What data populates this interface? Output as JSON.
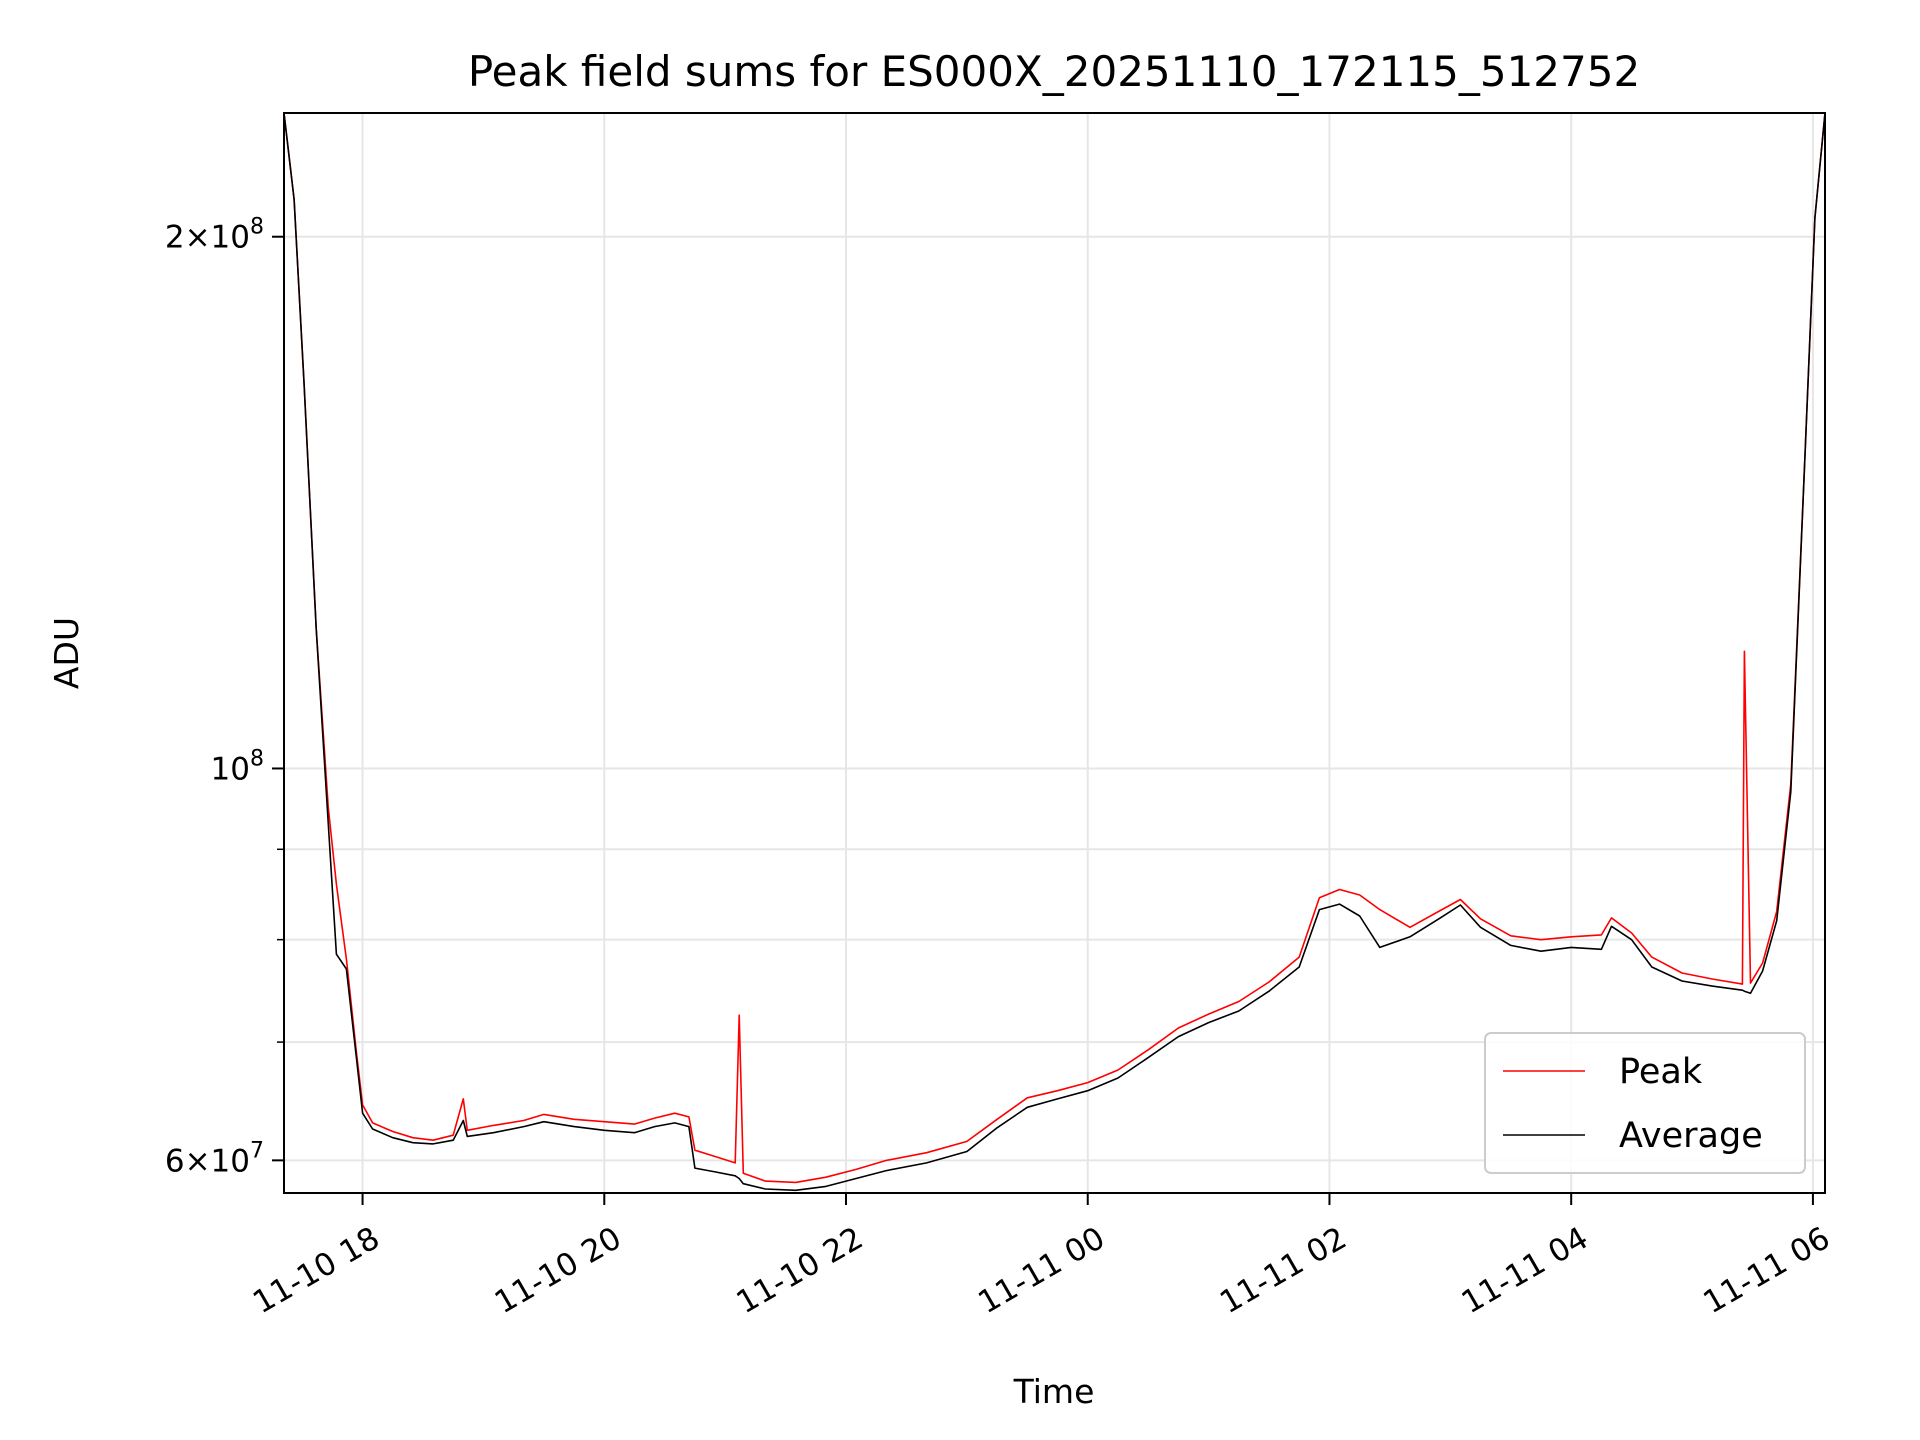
{
  "chart_data": {
    "type": "line",
    "title": "Peak field sums for ES000X_20251110_172115_512752",
    "xlabel": "Time",
    "ylabel": "ADU",
    "y_scale": "log",
    "xlim": [
      "2025-11-10T17:21",
      "2025-11-11T06:06"
    ],
    "ylim": [
      57500000,
      235000000
    ],
    "grid": true,
    "legend": "lower-right",
    "x_ticks": [
      {
        "x": "2025-11-10T18:00",
        "label": "11-10 18"
      },
      {
        "x": "2025-11-10T20:00",
        "label": "11-10 20"
      },
      {
        "x": "2025-11-10T22:00",
        "label": "11-10 22"
      },
      {
        "x": "2025-11-11T00:00",
        "label": "11-11 00"
      },
      {
        "x": "2025-11-11T02:00",
        "label": "11-11 02"
      },
      {
        "x": "2025-11-11T04:00",
        "label": "11-11 04"
      },
      {
        "x": "2025-11-11T06:00",
        "label": "11-11 06"
      }
    ],
    "y_ticks": [
      {
        "y": 60000000,
        "mantissa": "6",
        "exp": "7"
      },
      {
        "y": 100000000,
        "mantissa": "",
        "exp": "8"
      },
      {
        "y": 200000000,
        "mantissa": "2",
        "exp": "8"
      }
    ],
    "series": [
      {
        "name": "Peak",
        "color": "#ff0000",
        "points": [
          [
            "2025-11-10T17:21",
            235000000
          ],
          [
            "2025-11-10T17:26",
            210000000
          ],
          [
            "2025-11-10T17:31",
            165000000
          ],
          [
            "2025-11-10T17:37",
            120000000
          ],
          [
            "2025-11-10T17:43",
            95000000
          ],
          [
            "2025-11-10T17:47",
            86000000
          ],
          [
            "2025-11-10T17:52",
            78000000
          ],
          [
            "2025-11-10T17:57",
            69000000
          ],
          [
            "2025-11-10T18:00",
            64500000
          ],
          [
            "2025-11-10T18:05",
            63000000
          ],
          [
            "2025-11-10T18:15",
            62300000
          ],
          [
            "2025-11-10T18:25",
            61800000
          ],
          [
            "2025-11-10T18:35",
            61600000
          ],
          [
            "2025-11-10T18:45",
            62000000
          ],
          [
            "2025-11-10T18:50",
            65000000
          ],
          [
            "2025-11-10T18:52",
            62400000
          ],
          [
            "2025-11-10T19:05",
            62800000
          ],
          [
            "2025-11-10T19:20",
            63200000
          ],
          [
            "2025-11-10T19:30",
            63700000
          ],
          [
            "2025-11-10T19:45",
            63300000
          ],
          [
            "2025-11-10T20:00",
            63100000
          ],
          [
            "2025-11-10T20:15",
            62900000
          ],
          [
            "2025-11-10T20:25",
            63400000
          ],
          [
            "2025-11-10T20:35",
            63800000
          ],
          [
            "2025-11-10T20:42",
            63500000
          ],
          [
            "2025-11-10T20:45",
            60800000
          ],
          [
            "2025-11-10T20:55",
            60300000
          ],
          [
            "2025-11-10T21:05",
            59800000
          ],
          [
            "2025-11-10T21:07",
            72500000
          ],
          [
            "2025-11-10T21:09",
            59000000
          ],
          [
            "2025-11-10T21:20",
            58400000
          ],
          [
            "2025-11-10T21:35",
            58300000
          ],
          [
            "2025-11-10T21:50",
            58700000
          ],
          [
            "2025-11-10T22:05",
            59300000
          ],
          [
            "2025-11-10T22:20",
            60000000
          ],
          [
            "2025-11-10T22:40",
            60600000
          ],
          [
            "2025-11-10T23:00",
            61500000
          ],
          [
            "2025-11-10T23:15",
            63300000
          ],
          [
            "2025-11-10T23:30",
            65100000
          ],
          [
            "2025-11-10T23:45",
            65700000
          ],
          [
            "2025-11-11T00:00",
            66400000
          ],
          [
            "2025-11-11T00:15",
            67500000
          ],
          [
            "2025-11-11T00:30",
            69300000
          ],
          [
            "2025-11-11T00:45",
            71300000
          ],
          [
            "2025-11-11T01:00",
            72600000
          ],
          [
            "2025-11-11T01:15",
            73800000
          ],
          [
            "2025-11-11T01:30",
            75700000
          ],
          [
            "2025-11-11T01:45",
            78200000
          ],
          [
            "2025-11-11T01:55",
            84500000
          ],
          [
            "2025-11-11T02:05",
            85400000
          ],
          [
            "2025-11-11T02:15",
            84800000
          ],
          [
            "2025-11-11T02:25",
            83200000
          ],
          [
            "2025-11-11T02:40",
            81300000
          ],
          [
            "2025-11-11T02:55",
            83100000
          ],
          [
            "2025-11-11T03:05",
            84300000
          ],
          [
            "2025-11-11T03:15",
            82200000
          ],
          [
            "2025-11-11T03:30",
            80400000
          ],
          [
            "2025-11-11T03:45",
            80000000
          ],
          [
            "2025-11-11T04:00",
            80300000
          ],
          [
            "2025-11-11T04:15",
            80500000
          ],
          [
            "2025-11-11T04:20",
            82300000
          ],
          [
            "2025-11-11T04:30",
            80700000
          ],
          [
            "2025-11-11T04:40",
            78200000
          ],
          [
            "2025-11-11T04:55",
            76600000
          ],
          [
            "2025-11-11T05:10",
            76000000
          ],
          [
            "2025-11-11T05:25",
            75500000
          ],
          [
            "2025-11-11T05:26",
            116500000
          ],
          [
            "2025-11-11T05:29",
            75600000
          ],
          [
            "2025-11-11T05:35",
            77600000
          ],
          [
            "2025-11-11T05:42",
            83000000
          ],
          [
            "2025-11-11T05:49",
            98000000
          ],
          [
            "2025-11-11T05:56",
            150000000
          ],
          [
            "2025-11-11T06:01",
            205000000
          ],
          [
            "2025-11-11T06:06",
            235000000
          ]
        ]
      },
      {
        "name": "Average",
        "color": "#000000",
        "points": [
          [
            "2025-11-10T17:21",
            235000000
          ],
          [
            "2025-11-10T17:26",
            210000000
          ],
          [
            "2025-11-10T17:31",
            165000000
          ],
          [
            "2025-11-10T17:37",
            120000000
          ],
          [
            "2025-11-10T17:43",
            93000000
          ],
          [
            "2025-11-10T17:47",
            78500000
          ],
          [
            "2025-11-10T17:52",
            77000000
          ],
          [
            "2025-11-10T17:57",
            68500000
          ],
          [
            "2025-11-10T18:00",
            63800000
          ],
          [
            "2025-11-10T18:05",
            62500000
          ],
          [
            "2025-11-10T18:15",
            61800000
          ],
          [
            "2025-11-10T18:25",
            61400000
          ],
          [
            "2025-11-10T18:35",
            61300000
          ],
          [
            "2025-11-10T18:45",
            61600000
          ],
          [
            "2025-11-10T18:50",
            63200000
          ],
          [
            "2025-11-10T18:52",
            61900000
          ],
          [
            "2025-11-10T19:05",
            62200000
          ],
          [
            "2025-11-10T19:20",
            62700000
          ],
          [
            "2025-11-10T19:30",
            63100000
          ],
          [
            "2025-11-10T19:45",
            62700000
          ],
          [
            "2025-11-10T20:00",
            62400000
          ],
          [
            "2025-11-10T20:15",
            62200000
          ],
          [
            "2025-11-10T20:25",
            62700000
          ],
          [
            "2025-11-10T20:35",
            63000000
          ],
          [
            "2025-11-10T20:42",
            62700000
          ],
          [
            "2025-11-10T20:45",
            59400000
          ],
          [
            "2025-11-10T20:55",
            59100000
          ],
          [
            "2025-11-10T21:05",
            58800000
          ],
          [
            "2025-11-10T21:07",
            58600000
          ],
          [
            "2025-11-10T21:09",
            58200000
          ],
          [
            "2025-11-10T21:20",
            57800000
          ],
          [
            "2025-11-10T21:35",
            57700000
          ],
          [
            "2025-11-10T21:50",
            58000000
          ],
          [
            "2025-11-10T22:05",
            58600000
          ],
          [
            "2025-11-10T22:20",
            59200000
          ],
          [
            "2025-11-10T22:40",
            59800000
          ],
          [
            "2025-11-10T23:00",
            60700000
          ],
          [
            "2025-11-10T23:15",
            62600000
          ],
          [
            "2025-11-10T23:30",
            64300000
          ],
          [
            "2025-11-10T23:45",
            65000000
          ],
          [
            "2025-11-11T00:00",
            65700000
          ],
          [
            "2025-11-11T00:15",
            66800000
          ],
          [
            "2025-11-11T00:30",
            68600000
          ],
          [
            "2025-11-11T00:45",
            70500000
          ],
          [
            "2025-11-11T01:00",
            71800000
          ],
          [
            "2025-11-11T01:15",
            72900000
          ],
          [
            "2025-11-11T01:30",
            74800000
          ],
          [
            "2025-11-11T01:45",
            77200000
          ],
          [
            "2025-11-11T01:55",
            83200000
          ],
          [
            "2025-11-11T02:05",
            83800000
          ],
          [
            "2025-11-11T02:15",
            82500000
          ],
          [
            "2025-11-11T02:25",
            79200000
          ],
          [
            "2025-11-11T02:40",
            80300000
          ],
          [
            "2025-11-11T02:55",
            82300000
          ],
          [
            "2025-11-11T03:05",
            83700000
          ],
          [
            "2025-11-11T03:15",
            81300000
          ],
          [
            "2025-11-11T03:30",
            79400000
          ],
          [
            "2025-11-11T03:45",
            78800000
          ],
          [
            "2025-11-11T04:00",
            79200000
          ],
          [
            "2025-11-11T04:15",
            79000000
          ],
          [
            "2025-11-11T04:20",
            81400000
          ],
          [
            "2025-11-11T04:30",
            80000000
          ],
          [
            "2025-11-11T04:40",
            77200000
          ],
          [
            "2025-11-11T04:55",
            75800000
          ],
          [
            "2025-11-11T05:10",
            75300000
          ],
          [
            "2025-11-11T05:25",
            74900000
          ],
          [
            "2025-11-11T05:26",
            74800000
          ],
          [
            "2025-11-11T05:29",
            74600000
          ],
          [
            "2025-11-11T05:35",
            76800000
          ],
          [
            "2025-11-11T05:42",
            82000000
          ],
          [
            "2025-11-11T05:49",
            97000000
          ],
          [
            "2025-11-11T05:56",
            150000000
          ],
          [
            "2025-11-11T06:01",
            205000000
          ],
          [
            "2025-11-11T06:06",
            235000000
          ]
        ]
      }
    ]
  }
}
